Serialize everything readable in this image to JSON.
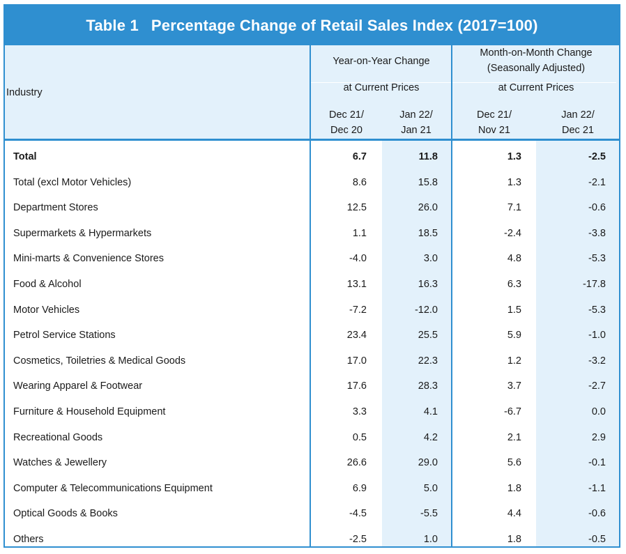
{
  "table": {
    "number": "Table 1",
    "title": "Percentage Change of Retail Sales Index (2017=100)",
    "corner_header": "Industry",
    "groups": [
      {
        "title_line1": "Year-on-Year Change",
        "title_line2": "",
        "sub": "at Current Prices"
      },
      {
        "title_line1": "Month-on-Month Change",
        "title_line2": "(Seasonally Adjusted)",
        "sub": "at Current Prices"
      }
    ],
    "columns": [
      {
        "line1": "Dec 21/",
        "line2": "Dec 20"
      },
      {
        "line1": "Jan 22/",
        "line2": "Jan 21"
      },
      {
        "line1": "Dec 21/",
        "line2": "Nov 21"
      },
      {
        "line1": "Jan 22/",
        "line2": "Dec 21"
      }
    ],
    "rows": [
      {
        "industry": "Total",
        "values": [
          "6.7",
          "11.8",
          "1.3",
          "-2.5"
        ]
      },
      {
        "industry": "Total (excl Motor Vehicles)",
        "values": [
          "8.6",
          "15.8",
          "1.3",
          "-2.1"
        ]
      },
      {
        "industry": "Department Stores",
        "values": [
          "12.5",
          "26.0",
          "7.1",
          "-0.6"
        ]
      },
      {
        "industry": "Supermarkets & Hypermarkets",
        "values": [
          "1.1",
          "18.5",
          "-2.4",
          "-3.8"
        ]
      },
      {
        "industry": "Mini-marts & Convenience Stores",
        "values": [
          "-4.0",
          "3.0",
          "4.8",
          "-5.3"
        ]
      },
      {
        "industry": "Food & Alcohol",
        "values": [
          "13.1",
          "16.3",
          "6.3",
          "-17.8"
        ]
      },
      {
        "industry": "Motor Vehicles",
        "values": [
          "-7.2",
          "-12.0",
          "1.5",
          "-5.3"
        ]
      },
      {
        "industry": "Petrol Service Stations",
        "values": [
          "23.4",
          "25.5",
          "5.9",
          "-1.0"
        ]
      },
      {
        "industry": "Cosmetics, Toiletries & Medical Goods",
        "values": [
          "17.0",
          "22.3",
          "1.2",
          "-3.2"
        ]
      },
      {
        "industry": "Wearing Apparel & Footwear",
        "values": [
          "17.6",
          "28.3",
          "3.7",
          "-2.7"
        ]
      },
      {
        "industry": "Furniture & Household Equipment",
        "values": [
          "3.3",
          "4.1",
          "-6.7",
          "0.0"
        ]
      },
      {
        "industry": "Recreational Goods",
        "values": [
          "0.5",
          "4.2",
          "2.1",
          "2.9"
        ]
      },
      {
        "industry": "Watches & Jewellery",
        "values": [
          "26.6",
          "29.0",
          "5.6",
          "-0.1"
        ]
      },
      {
        "industry": "Computer  & Telecommunications Equipment",
        "values": [
          "6.9",
          "5.0",
          "1.8",
          "-1.1"
        ]
      },
      {
        "industry": "Optical Goods & Books",
        "values": [
          "-4.5",
          "-5.5",
          "4.4",
          "-0.6"
        ]
      },
      {
        "industry": "Others",
        "values": [
          "-2.5",
          "1.0",
          "1.8",
          "-0.5"
        ]
      }
    ]
  },
  "colors": {
    "accent": "#2f8fd0",
    "header_fill": "#e3f1fb",
    "title_text": "#ffffff"
  }
}
